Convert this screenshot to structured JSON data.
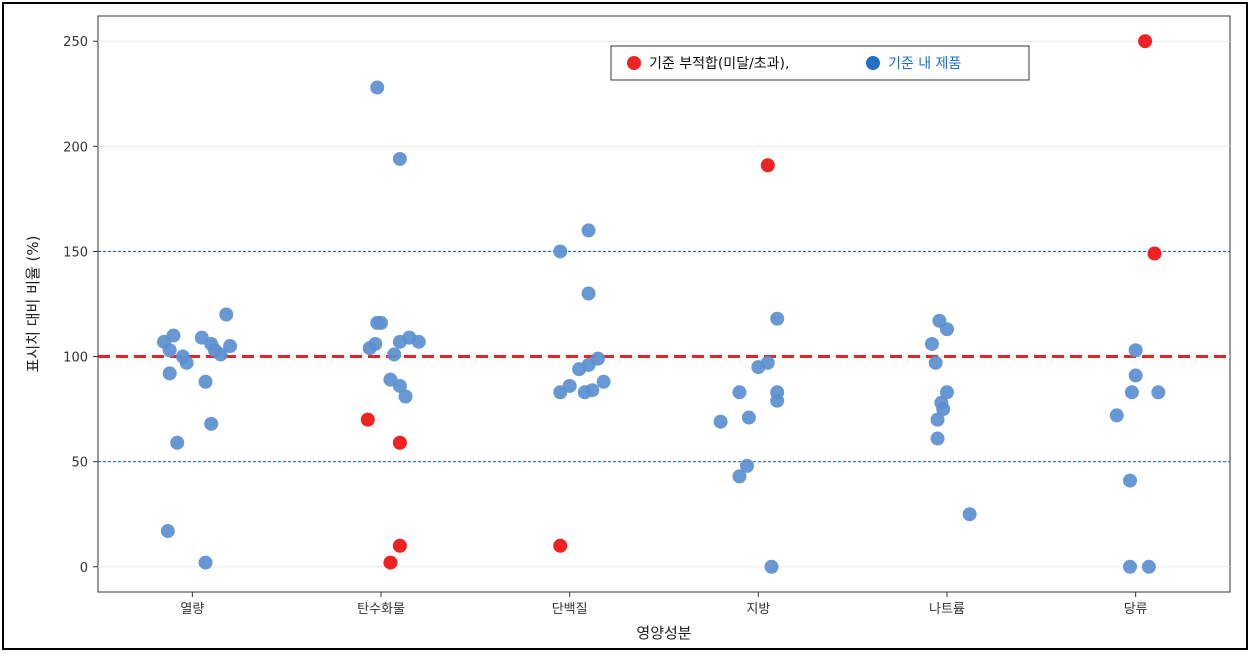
{
  "chart_data": {
    "type": "scatter",
    "title": "",
    "xlabel": "영양성분",
    "ylabel": "표시치 대비 비율 (%)",
    "categories": [
      "열량",
      "탄수화물",
      "단백질",
      "지방",
      "나트륨",
      "당류"
    ],
    "yticks": [
      0,
      50,
      100,
      150,
      200,
      250
    ],
    "ylim": [
      -12,
      262
    ],
    "grid": "horizontal",
    "reference_lines": [
      {
        "y": 100,
        "style": "dashed",
        "color": "#e8242a"
      },
      {
        "y": 50,
        "style": "dotted",
        "color": "#2a6fb0"
      },
      {
        "y": 150,
        "style": "dotted",
        "color": "#2a6fb0"
      }
    ],
    "legend": {
      "position": "top-right",
      "items": [
        {
          "label": "기준 부적합(미달/초과),",
          "color": "#ee2222",
          "text_color": "#111111"
        },
        {
          "label": "기준 내 제품",
          "color": "#1f6fc4",
          "text_color": "#1f6fc4"
        }
      ]
    },
    "series": [
      {
        "status": "within",
        "color": "#5b8fd0",
        "points": [
          {
            "x": "열량",
            "offset": -0.15,
            "y": 107
          },
          {
            "x": "열량",
            "offset": -0.1,
            "y": 110
          },
          {
            "x": "열량",
            "offset": -0.12,
            "y": 103
          },
          {
            "x": "열량",
            "offset": -0.05,
            "y": 100
          },
          {
            "x": "열량",
            "offset": -0.03,
            "y": 97
          },
          {
            "x": "열량",
            "offset": 0.05,
            "y": 109
          },
          {
            "x": "열량",
            "offset": 0.1,
            "y": 106
          },
          {
            "x": "열량",
            "offset": 0.12,
            "y": 103
          },
          {
            "x": "열량",
            "offset": 0.15,
            "y": 101
          },
          {
            "x": "열량",
            "offset": 0.2,
            "y": 105
          },
          {
            "x": "열량",
            "offset": 0.18,
            "y": 120
          },
          {
            "x": "열량",
            "offset": -0.12,
            "y": 92
          },
          {
            "x": "열량",
            "offset": 0.07,
            "y": 88
          },
          {
            "x": "열량",
            "offset": 0.1,
            "y": 68
          },
          {
            "x": "열량",
            "offset": -0.08,
            "y": 59
          },
          {
            "x": "열량",
            "offset": -0.13,
            "y": 17
          },
          {
            "x": "열량",
            "offset": 0.07,
            "y": 2
          },
          {
            "x": "탄수화물",
            "offset": -0.02,
            "y": 228
          },
          {
            "x": "탄수화물",
            "offset": 0.1,
            "y": 194
          },
          {
            "x": "탄수화물",
            "offset": -0.02,
            "y": 116
          },
          {
            "x": "탄수화물",
            "offset": 0.0,
            "y": 116
          },
          {
            "x": "탄수화물",
            "offset": -0.06,
            "y": 104
          },
          {
            "x": "탄수화물",
            "offset": -0.03,
            "y": 106
          },
          {
            "x": "탄수화물",
            "offset": 0.07,
            "y": 101
          },
          {
            "x": "탄수화물",
            "offset": 0.1,
            "y": 107
          },
          {
            "x": "탄수화물",
            "offset": 0.15,
            "y": 109
          },
          {
            "x": "탄수화물",
            "offset": 0.2,
            "y": 107
          },
          {
            "x": "탄수화물",
            "offset": 0.05,
            "y": 89
          },
          {
            "x": "탄수화물",
            "offset": 0.1,
            "y": 86
          },
          {
            "x": "탄수화물",
            "offset": 0.13,
            "y": 81
          },
          {
            "x": "단백질",
            "offset": -0.05,
            "y": 150
          },
          {
            "x": "단백질",
            "offset": 0.1,
            "y": 160
          },
          {
            "x": "단백질",
            "offset": 0.1,
            "y": 130
          },
          {
            "x": "단백질",
            "offset": -0.05,
            "y": 83
          },
          {
            "x": "단백질",
            "offset": 0.0,
            "y": 86
          },
          {
            "x": "단백질",
            "offset": 0.05,
            "y": 94
          },
          {
            "x": "단백질",
            "offset": 0.1,
            "y": 96
          },
          {
            "x": "단백질",
            "offset": 0.15,
            "y": 99
          },
          {
            "x": "단백질",
            "offset": 0.18,
            "y": 88
          },
          {
            "x": "단백질",
            "offset": 0.12,
            "y": 84
          },
          {
            "x": "단백질",
            "offset": 0.08,
            "y": 83
          },
          {
            "x": "지방",
            "offset": 0.1,
            "y": 118
          },
          {
            "x": "지방",
            "offset": 0.0,
            "y": 95
          },
          {
            "x": "지방",
            "offset": 0.05,
            "y": 97
          },
          {
            "x": "지방",
            "offset": -0.1,
            "y": 83
          },
          {
            "x": "지방",
            "offset": 0.1,
            "y": 83
          },
          {
            "x": "지방",
            "offset": 0.1,
            "y": 79
          },
          {
            "x": "지방",
            "offset": -0.05,
            "y": 71
          },
          {
            "x": "지방",
            "offset": -0.2,
            "y": 69
          },
          {
            "x": "지방",
            "offset": -0.06,
            "y": 48
          },
          {
            "x": "지방",
            "offset": -0.1,
            "y": 43
          },
          {
            "x": "지방",
            "offset": 0.07,
            "y": 0
          },
          {
            "x": "나트륨",
            "offset": -0.04,
            "y": 117
          },
          {
            "x": "나트륨",
            "offset": 0.0,
            "y": 113
          },
          {
            "x": "나트륨",
            "offset": -0.08,
            "y": 106
          },
          {
            "x": "나트륨",
            "offset": -0.06,
            "y": 97
          },
          {
            "x": "나트륨",
            "offset": 0.0,
            "y": 83
          },
          {
            "x": "나트륨",
            "offset": -0.03,
            "y": 78
          },
          {
            "x": "나트륨",
            "offset": -0.02,
            "y": 75
          },
          {
            "x": "나트륨",
            "offset": -0.05,
            "y": 70
          },
          {
            "x": "나트륨",
            "offset": -0.05,
            "y": 61
          },
          {
            "x": "나트륨",
            "offset": 0.12,
            "y": 25
          },
          {
            "x": "당류",
            "offset": 0.0,
            "y": 103
          },
          {
            "x": "당류",
            "offset": 0.0,
            "y": 91
          },
          {
            "x": "당류",
            "offset": -0.02,
            "y": 83
          },
          {
            "x": "당류",
            "offset": 0.12,
            "y": 83
          },
          {
            "x": "당류",
            "offset": -0.1,
            "y": 72
          },
          {
            "x": "당류",
            "offset": -0.03,
            "y": 41
          },
          {
            "x": "당류",
            "offset": -0.03,
            "y": 0
          },
          {
            "x": "당류",
            "offset": 0.07,
            "y": 0
          }
        ]
      },
      {
        "status": "nonconforming",
        "color": "#ee2222",
        "points": [
          {
            "x": "탄수화물",
            "offset": -0.07,
            "y": 70
          },
          {
            "x": "탄수화물",
            "offset": 0.1,
            "y": 59
          },
          {
            "x": "탄수화물",
            "offset": 0.1,
            "y": 10
          },
          {
            "x": "탄수화물",
            "offset": 0.05,
            "y": 2
          },
          {
            "x": "단백질",
            "offset": -0.05,
            "y": 10
          },
          {
            "x": "지방",
            "offset": 0.05,
            "y": 191
          },
          {
            "x": "당류",
            "offset": 0.05,
            "y": 250
          },
          {
            "x": "당류",
            "offset": 0.1,
            "y": 149
          }
        ]
      }
    ]
  }
}
